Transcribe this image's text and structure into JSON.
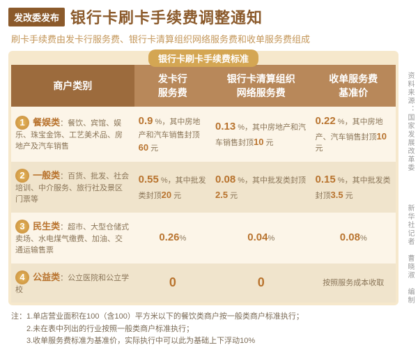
{
  "header": {
    "badge": "发改委发布",
    "title": "银行卡刷卡手续费调整通知",
    "subtitle": "刷卡手续费由发卡行服务费、银行卡清算组织网络服务费和收单服务费组成"
  },
  "tab_label": "银行卡刷卡手续费标准",
  "columns": [
    "商户类别",
    "发卡行\n服务费",
    "银行卡清算组织\n网络服务费",
    "收单服务费\n基准价"
  ],
  "rows": [
    {
      "num": "1",
      "name": "餐娱类",
      "desc": "：餐饮、宾馆、娱乐、珠宝金饰、工艺美术品、房地产及汽车销售",
      "c1_rate": "0.9",
      "c1_note": "%，其中房地产和汽车销售封顶",
      "c1_cap": "60",
      "c1_unit": "元",
      "c2_rate": "0.13",
      "c2_note": "%，其中房地产和汽车销售封顶",
      "c2_cap": "10",
      "c2_unit": "元",
      "c3_rate": "0.22",
      "c3_note": "%，其中房地产、汽车销售封顶",
      "c3_cap": "10",
      "c3_unit": "元"
    },
    {
      "num": "2",
      "name": "一般类",
      "desc": "：百货、批发、社会培训、中介服务、旅行社及景区门票等",
      "c1_rate": "0.55",
      "c1_note": "%，其中批发类封顶",
      "c1_cap": "20",
      "c1_unit": "元",
      "c2_rate": "0.08",
      "c2_note": "%，其中批发类封顶",
      "c2_cap": "2.5",
      "c2_unit": "元",
      "c3_rate": "0.15",
      "c3_note": "%，其中批发类封顶",
      "c3_cap": "3.5",
      "c3_unit": "元"
    },
    {
      "num": "3",
      "name": "民生类",
      "desc": "：超市、大型仓储式卖场、水电煤气缴费、加油、交通运输售票",
      "c1_rate": "0.26",
      "c1_pct": "%",
      "c2_rate": "0.04",
      "c2_pct": "%",
      "c3_rate": "0.08",
      "c3_pct": "%"
    },
    {
      "num": "4",
      "name": "公益类",
      "desc": "：公立医院和公立学校",
      "c1_zero": "0",
      "c2_zero": "0",
      "c3_text": "按照服务成本收取"
    }
  ],
  "notes": [
    "注：1.单店营业面积在100（含100）平方米以下的餐饮类商户按一般类商户标准执行；",
    "　　2.未在表中列出的行业按照一般类商户标准执行；",
    "　　3.收单服务费标准为基准价，实际执行中可以此为基础上下浮动10%"
  ],
  "credit1": "资料来源：国家发展改革委",
  "credit2": "新华社记者　曹晓淑　编制"
}
